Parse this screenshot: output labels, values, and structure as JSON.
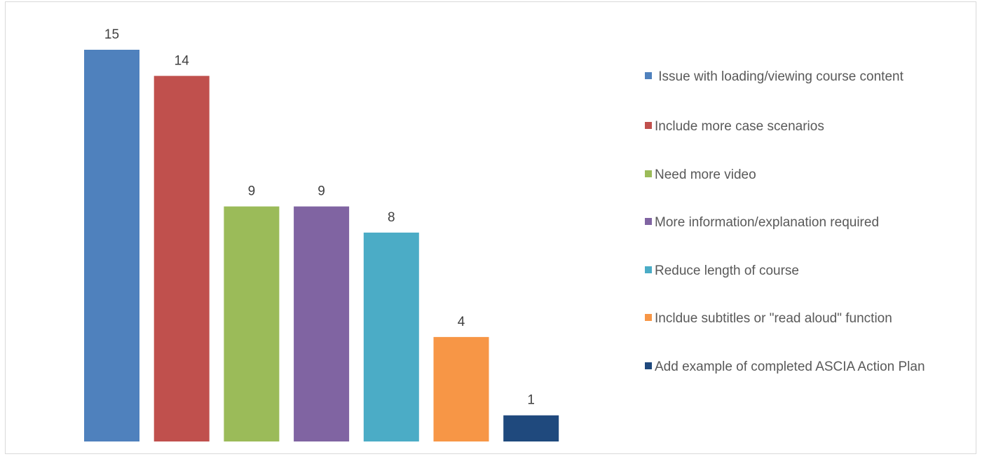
{
  "chart_data": {
    "type": "bar",
    "title": "",
    "xlabel": "",
    "ylabel": "",
    "ylim": [
      0,
      15
    ],
    "grid": false,
    "legend_position": "right",
    "series": [
      {
        "name": " Issue with loading/viewing course content",
        "value": 15,
        "color": "#4f81bd"
      },
      {
        "name": "Include more case scenarios",
        "value": 14,
        "color": "#c0504d"
      },
      {
        "name": "Need more video",
        "value": 9,
        "color": "#9bbb59"
      },
      {
        "name": "More information/explanation required",
        "value": 9,
        "color": "#8064a2"
      },
      {
        "name": "Reduce length of course",
        "value": 8,
        "color": "#4bacc6"
      },
      {
        "name": "Incldue subtitles or \"read aloud\" function",
        "value": 4,
        "color": "#f79646"
      },
      {
        "name": "Add example of completed ASCIA Action Plan",
        "value": 1,
        "color": "#1f497d"
      }
    ]
  }
}
